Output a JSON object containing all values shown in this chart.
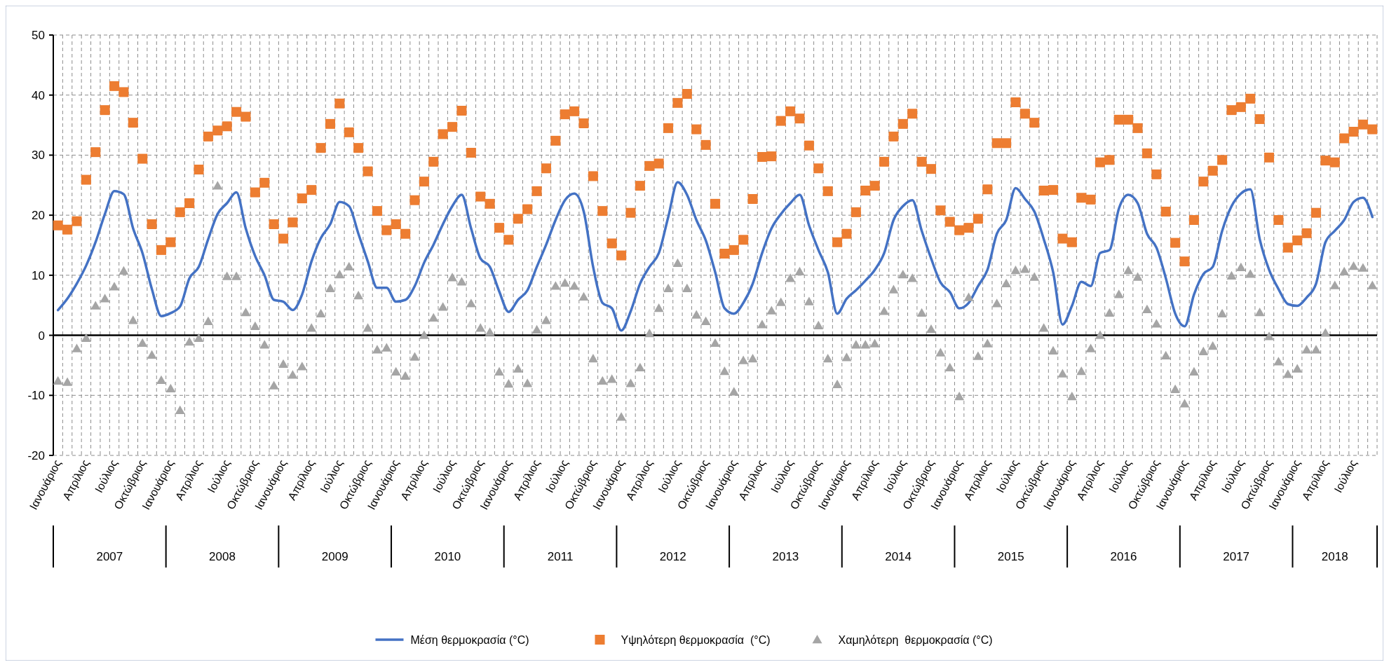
{
  "chart_data": {
    "type": "line",
    "categories": [
      "Ιανουάριος",
      null,
      null,
      "Απρίλιος",
      null,
      null,
      "Ιούλιος",
      null,
      null,
      "Οκτώβριος",
      null,
      null,
      "Ιανουάριος",
      null,
      null,
      "Απρίλιος",
      null,
      null,
      "Ιούλιος",
      null,
      null,
      "Οκτώβριος",
      null,
      null,
      "Ιανουάριος",
      null,
      null,
      "Απρίλιος",
      null,
      null,
      "Ιούλιος",
      null,
      null,
      "Οκτώβριος",
      null,
      null,
      "Ιανουάριος",
      null,
      null,
      "Απρίλιος",
      null,
      null,
      "Ιούλιος",
      null,
      null,
      "Οκτώβριος",
      null,
      null,
      "Ιανουάριος",
      null,
      null,
      "Απρίλιος",
      null,
      null,
      "Ιούλιος",
      null,
      null,
      "Οκτώβριος",
      null,
      null,
      "Ιανουάριος",
      null,
      null,
      "Απρίλιος",
      null,
      null,
      "Ιούλιος",
      null,
      null,
      "Οκτώβριος",
      null,
      null,
      "Ιανουάριος",
      null,
      null,
      "Απρίλιος",
      null,
      null,
      "Ιούλιος",
      null,
      null,
      "Οκτώβριος",
      null,
      null,
      "Ιανουάριος",
      null,
      null,
      "Απρίλιος",
      null,
      null,
      "Ιούλιος",
      null,
      null,
      "Οκτώβριος",
      null,
      null,
      "Ιανουάριος",
      null,
      null,
      "Απρίλιος",
      null,
      null,
      "Ιούλιος",
      null,
      null,
      "Οκτώβριος",
      null,
      null,
      "Ιανουάριος",
      null,
      null,
      "Απρίλιος",
      null,
      null,
      "Ιούλιος",
      null,
      null,
      "Οκτώβριος",
      null,
      null,
      "Ιανουάριος",
      null,
      null,
      "Απρίλιος",
      null,
      null,
      "Ιούλιος",
      null,
      null,
      "Οκτώβριος",
      null,
      null,
      "Ιανουάριος",
      null,
      null,
      "Απρίλιος",
      null,
      null,
      "Ιούλιος",
      null,
      null
    ],
    "annotations": [
      "2007",
      "2008",
      "2009",
      "2010",
      "2011",
      "2012",
      "2013",
      "2014",
      "2015",
      "2016",
      "2017",
      "2018"
    ],
    "series": [
      {
        "name": "Μέση θερμοκρασία (°C)",
        "color": "#4472c4",
        "marker": "none",
        "values": [
          4.2,
          6.1,
          8.6,
          11.6,
          15.5,
          20.2,
          24.0,
          23.5,
          17.8,
          13.7,
          7.7,
          3.2,
          3.7,
          4.8,
          9.5,
          11.4,
          16.0,
          20.2,
          22.0,
          23.8,
          17.8,
          13.2,
          10.0,
          5.9,
          5.6,
          4.2,
          6.8,
          12.3,
          16.2,
          18.5,
          22.2,
          21.5,
          16.9,
          12.3,
          7.9,
          7.9,
          5.6,
          5.9,
          8.2,
          12.1,
          15.1,
          18.5,
          21.5,
          23.4,
          17.8,
          12.8,
          11.4,
          7.3,
          3.9,
          5.9,
          7.5,
          11.4,
          15.1,
          19.2,
          22.5,
          23.6,
          20.6,
          11.4,
          5.4,
          4.5,
          0.8,
          4.0,
          8.6,
          11.4,
          13.7,
          19.7,
          25.5,
          23.4,
          19.2,
          15.8,
          10.5,
          4.5,
          3.6,
          5.4,
          8.6,
          13.7,
          17.8,
          20.2,
          22.0,
          23.4,
          18.3,
          14.2,
          10.5,
          3.6,
          6.1,
          7.5,
          9.1,
          10.9,
          13.7,
          19.2,
          21.5,
          22.5,
          17.4,
          12.8,
          8.8,
          7.2,
          4.5,
          5.4,
          8.2,
          10.9,
          16.9,
          19.2,
          24.5,
          22.7,
          20.6,
          16.0,
          10.5,
          1.8,
          4.9,
          8.9,
          8.2,
          13.7,
          14.2,
          21.1,
          23.4,
          22.0,
          16.9,
          14.6,
          9.5,
          3.6,
          1.5,
          6.8,
          10.2,
          11.4,
          17.4,
          21.5,
          23.6,
          24.3,
          16.0,
          10.9,
          7.7,
          5.2,
          4.9,
          6.3,
          8.6,
          15.5,
          17.4,
          19.2,
          22.2,
          22.9,
          19.7
        ]
      },
      {
        "name": "Υψηλότερη θερμοκρασία  (°C)",
        "type": "scatter",
        "color": "#ed7d31",
        "marker": "square",
        "values": [
          18.3,
          17.6,
          19.0,
          25.9,
          30.5,
          37.5,
          41.5,
          40.5,
          35.4,
          29.4,
          18.5,
          14.2,
          15.5,
          20.5,
          22.0,
          27.6,
          33.1,
          34.1,
          34.8,
          37.2,
          36.4,
          23.8,
          25.4,
          18.5,
          16.1,
          18.8,
          22.8,
          24.2,
          31.2,
          35.2,
          38.6,
          33.8,
          31.2,
          27.3,
          20.7,
          17.5,
          18.5,
          16.9,
          22.5,
          25.6,
          28.9,
          33.5,
          34.7,
          37.4,
          30.4,
          23.1,
          21.9,
          17.9,
          15.9,
          19.4,
          21.0,
          24.0,
          27.8,
          32.4,
          36.8,
          37.3,
          35.3,
          26.5,
          20.7,
          15.3,
          13.3,
          20.4,
          24.9,
          28.2,
          28.6,
          34.5,
          38.7,
          40.2,
          34.3,
          31.7,
          21.9,
          13.6,
          14.2,
          15.9,
          22.7,
          29.7,
          29.8,
          35.7,
          37.3,
          36.1,
          31.6,
          27.8,
          24.0,
          15.5,
          16.9,
          20.5,
          24.1,
          24.9,
          28.9,
          33.1,
          35.2,
          36.9,
          28.9,
          27.7,
          20.8,
          18.9,
          17.5,
          17.9,
          19.4,
          24.3,
          32.0,
          32.0,
          38.8,
          36.9,
          35.4,
          24.1,
          24.2,
          16.1,
          15.5,
          22.9,
          22.6,
          28.8,
          29.2,
          35.9,
          35.9,
          34.5,
          30.3,
          26.8,
          20.6,
          15.4,
          12.3,
          19.2,
          25.6,
          27.4,
          29.2,
          37.5,
          38.0,
          39.4,
          36.0,
          29.6,
          19.2,
          14.6,
          15.8,
          17.0,
          20.4,
          29.1,
          28.8,
          32.8,
          33.9,
          35.1,
          34.3
        ]
      },
      {
        "name": "Χαμηλότερη  θερμοκρασία (°C)",
        "type": "scatter",
        "color": "#a5a5a5",
        "marker": "triangle",
        "values": [
          -7.6,
          -7.8,
          -2.2,
          -0.5,
          4.9,
          6.1,
          8.1,
          10.7,
          2.5,
          -1.3,
          -3.3,
          -7.5,
          -8.9,
          -12.5,
          -1.1,
          -0.5,
          2.3,
          24.9,
          9.8,
          9.8,
          3.8,
          1.5,
          -1.6,
          -8.4,
          -4.8,
          -6.6,
          -5.2,
          1.2,
          3.6,
          7.8,
          10.1,
          11.4,
          6.6,
          1.2,
          -2.4,
          -2.1,
          -6.1,
          -6.8,
          -3.6,
          0,
          2.9,
          4.7,
          9.6,
          8.9,
          5.3,
          1.2,
          0.5,
          -6.1,
          -8.1,
          -5.6,
          -8.0,
          0.9,
          2.5,
          8.2,
          8.7,
          8.2,
          6.4,
          -3.9,
          -7.6,
          -7.3,
          -13.6,
          -8.0,
          -5.4,
          0.3,
          4.5,
          7.8,
          12.0,
          7.8,
          3.4,
          2.3,
          -1.3,
          -6.0,
          -9.4,
          -4.2,
          -3.9,
          1.8,
          4.1,
          5.5,
          9.5,
          10.6,
          5.6,
          1.6,
          -3.9,
          -8.2,
          -3.7,
          -1.6,
          -1.6,
          -1.4,
          4.0,
          7.6,
          10.1,
          9.5,
          3.7,
          1.0,
          -2.9,
          -5.4,
          -10.2,
          6.3,
          -3.5,
          -1.4,
          5.3,
          8.6,
          10.8,
          11.0,
          9.7,
          1.2,
          -2.6,
          -6.4,
          -10.2,
          -6.0,
          -2.2,
          0,
          3.7,
          6.8,
          10.8,
          9.7,
          4.3,
          1.9,
          -3.4,
          -9.0,
          -11.4,
          -6.1,
          -2.7,
          -1.8,
          3.6,
          9.9,
          11.3,
          10.2,
          3.8,
          -0.2,
          -4.4,
          -6.5,
          -5.6,
          -2.4,
          -2.4,
          0.4,
          8.3,
          10.6,
          11.5,
          11.2,
          8.3
        ]
      }
    ],
    "ylim": [
      -20,
      50
    ],
    "yticks": [
      -20,
      -10,
      0,
      10,
      20,
      30,
      40,
      50
    ],
    "grid": true,
    "legend": "bottom"
  }
}
